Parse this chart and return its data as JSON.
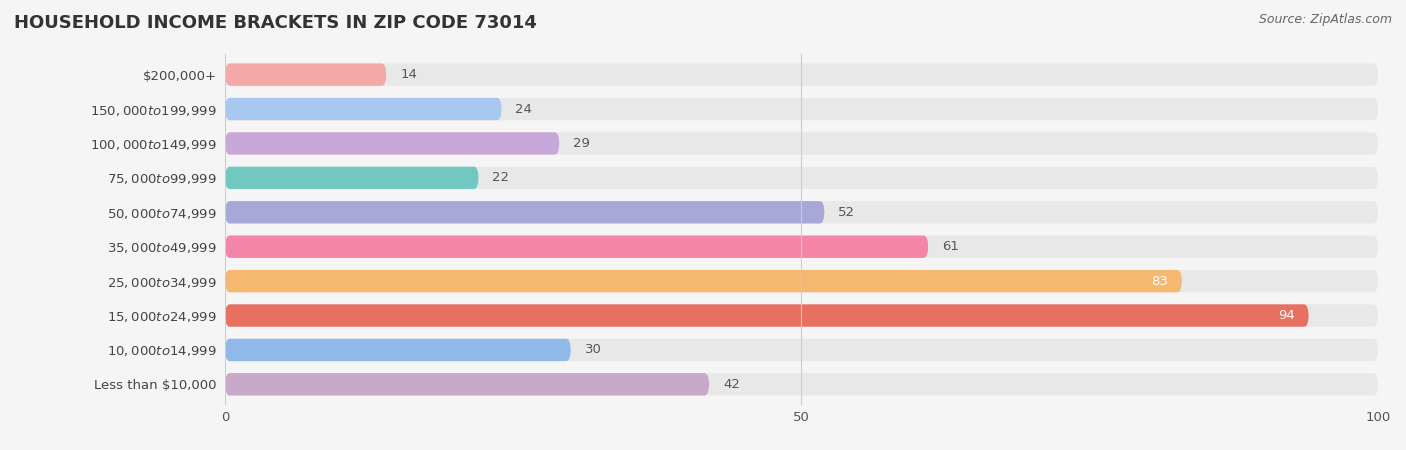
{
  "title": "HOUSEHOLD INCOME BRACKETS IN ZIP CODE 73014",
  "source": "Source: ZipAtlas.com",
  "categories": [
    "Less than $10,000",
    "$10,000 to $14,999",
    "$15,000 to $24,999",
    "$25,000 to $34,999",
    "$35,000 to $49,999",
    "$50,000 to $74,999",
    "$75,000 to $99,999",
    "$100,000 to $149,999",
    "$150,000 to $199,999",
    "$200,000+"
  ],
  "values": [
    14,
    24,
    29,
    22,
    52,
    61,
    83,
    94,
    30,
    42
  ],
  "bar_colors": [
    "#F4A8A8",
    "#A8C8F0",
    "#C8A8D8",
    "#70C8C0",
    "#A8A8D8",
    "#F484A8",
    "#F4B870",
    "#E87060",
    "#90B8E8",
    "#C8A8C8"
  ],
  "background_color": "#f5f5f5",
  "bar_bg_color": "#e8e8e8",
  "xlabel_ticks": [
    0,
    50,
    100
  ],
  "title_fontsize": 13,
  "label_fontsize": 9.5,
  "value_fontsize": 9.5,
  "white_label_threshold": 65
}
